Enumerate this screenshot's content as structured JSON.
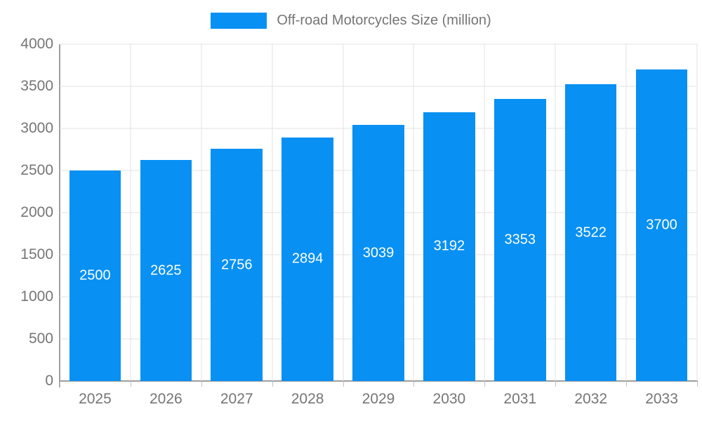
{
  "legend": {
    "label": "Off-road Motorcycles Size (million)"
  },
  "colors": {
    "bar": "#0890f3",
    "grid": "#e3e3e3",
    "axis": "#9e9e9e",
    "tick_text": "#757575",
    "bar_label_text": "#ffffff",
    "background": "#ffffff"
  },
  "chart_data": {
    "type": "bar",
    "title": "Off-road Motorcycles Size (million)",
    "categories": [
      "2025",
      "2026",
      "2027",
      "2028",
      "2029",
      "2030",
      "2031",
      "2032",
      "2033"
    ],
    "values": [
      2500,
      2625,
      2756,
      2894,
      3039,
      3192,
      3353,
      3522,
      3700
    ],
    "xlabel": "",
    "ylabel": "",
    "ylim": [
      0,
      4000
    ],
    "yticks": [
      0,
      500,
      1000,
      1500,
      2000,
      2500,
      3000,
      3500,
      4000
    ],
    "grid": true,
    "legend_position": "top",
    "value_labels": "inside-center"
  }
}
